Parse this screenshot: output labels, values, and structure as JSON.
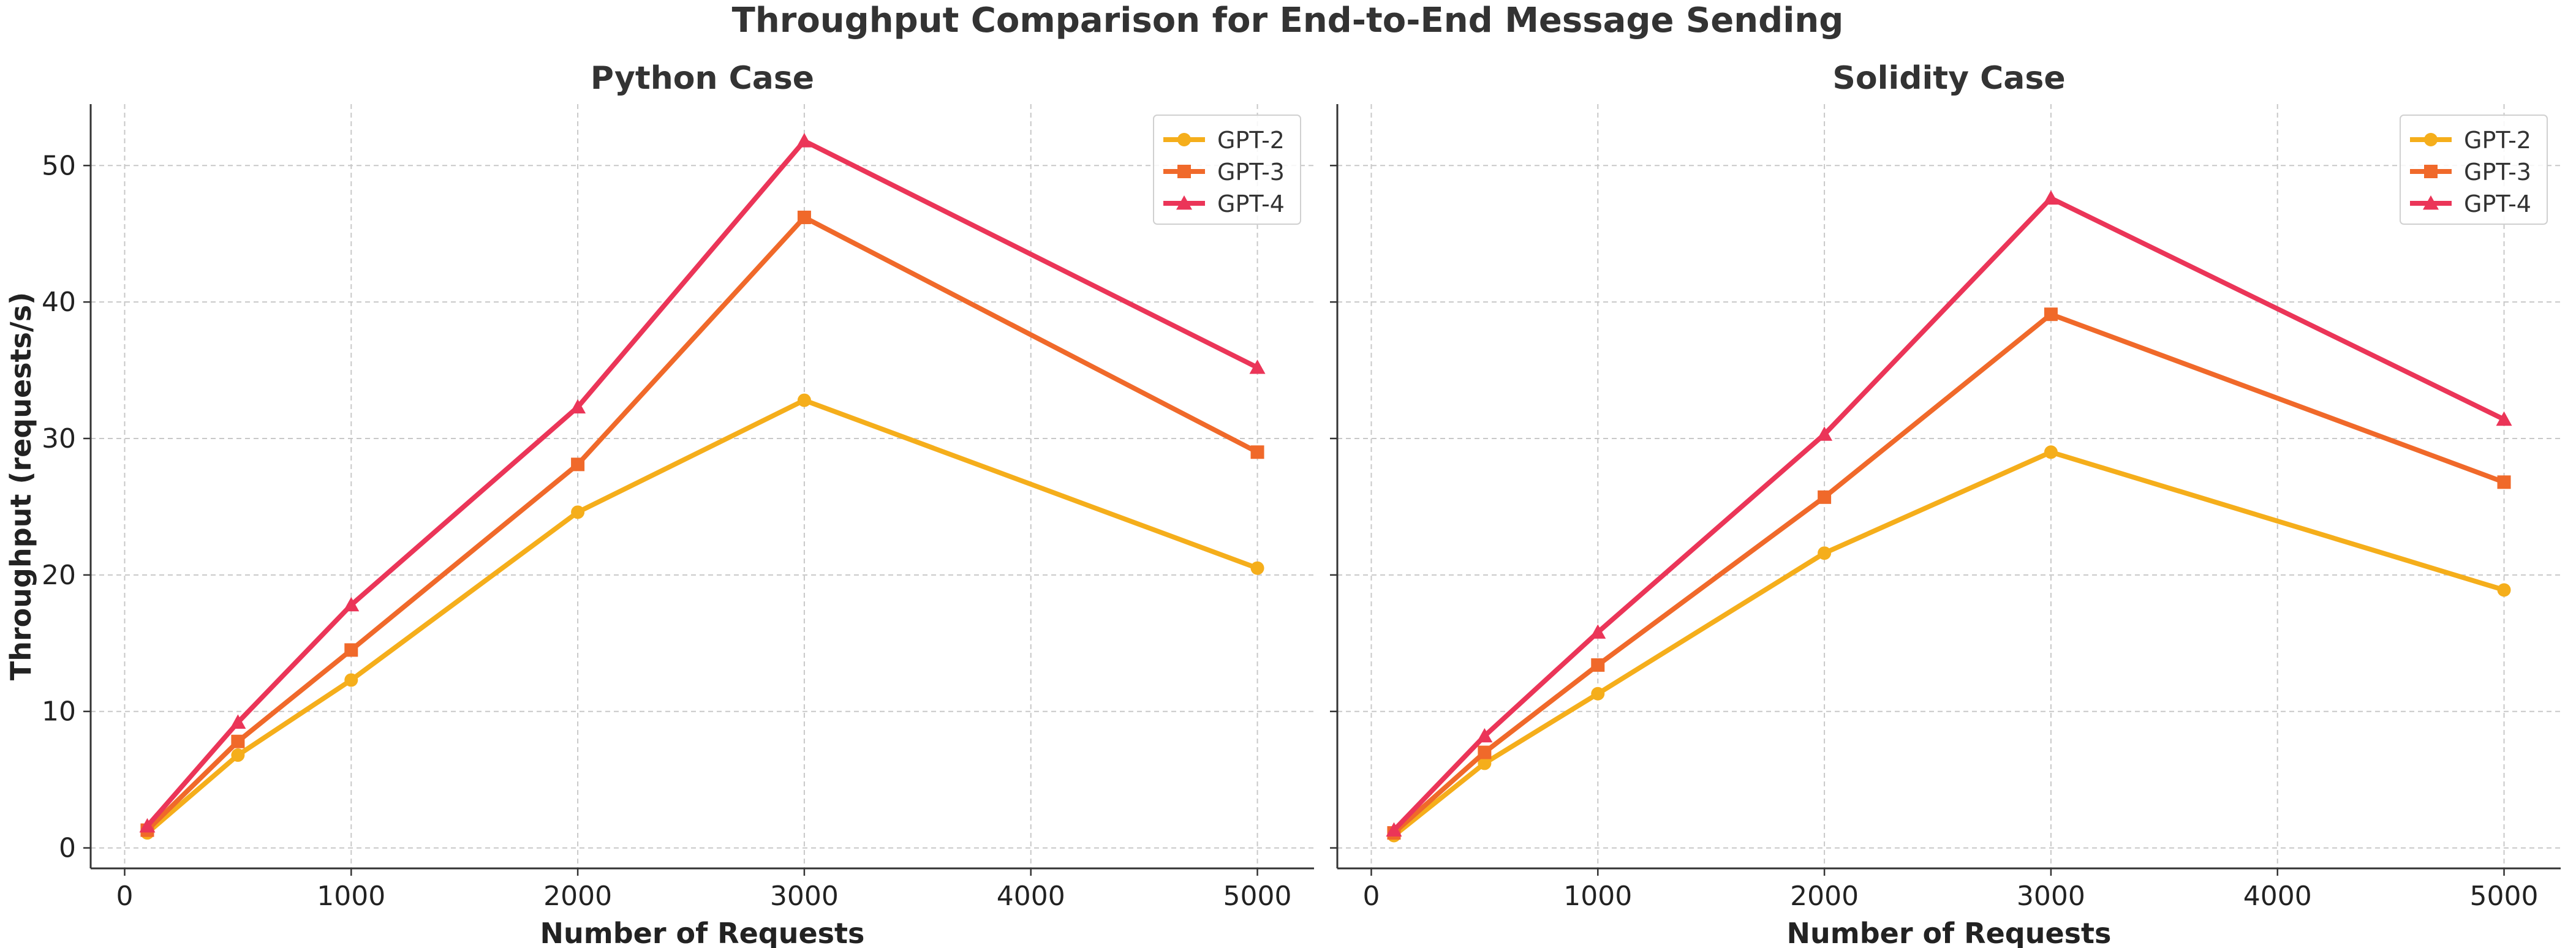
{
  "suptitle": "Throughput Comparison for End-to-End Message Sending",
  "colors": {
    "gpt2": "#F5AE1B",
    "gpt3": "#F0692A",
    "gpt4": "#EB3558",
    "axis": "#333333",
    "grid": "#c8c8c8"
  },
  "chart_data": [
    {
      "type": "line",
      "title": "Python Case",
      "xlabel": "Number of Requests",
      "ylabel": "Throughput (requests/s)",
      "xlim": [
        -150,
        5250
      ],
      "ylim": [
        -1.5,
        54.5
      ],
      "xticks": [
        0,
        1000,
        2000,
        3000,
        4000,
        5000
      ],
      "yticks": [
        0,
        10,
        20,
        30,
        40,
        50
      ],
      "grid": true,
      "legend_position": "top-right",
      "x": [
        100,
        500,
        1000,
        2000,
        3000,
        5000
      ],
      "series": [
        {
          "name": "GPT-2",
          "marker": "circle",
          "color": "#F5AE1B",
          "values": [
            1.1,
            6.8,
            12.3,
            24.6,
            32.8,
            20.5
          ]
        },
        {
          "name": "GPT-3",
          "marker": "square",
          "color": "#F0692A",
          "values": [
            1.3,
            7.8,
            14.5,
            28.1,
            46.2,
            29.0
          ]
        },
        {
          "name": "GPT-4",
          "marker": "triangle",
          "color": "#EB3558",
          "values": [
            1.6,
            9.2,
            17.8,
            32.3,
            51.8,
            35.2
          ]
        }
      ]
    },
    {
      "type": "line",
      "title": "Solidity Case",
      "xlabel": "Number of Requests",
      "ylabel": "",
      "xlim": [
        -150,
        5250
      ],
      "ylim": [
        -1.5,
        54.5
      ],
      "xticks": [
        0,
        1000,
        2000,
        3000,
        4000,
        5000
      ],
      "yticks": [
        0,
        10,
        20,
        30,
        40,
        50
      ],
      "grid": true,
      "legend_position": "top-right",
      "x": [
        100,
        500,
        1000,
        2000,
        3000,
        5000
      ],
      "series": [
        {
          "name": "GPT-2",
          "marker": "circle",
          "color": "#F5AE1B",
          "values": [
            0.9,
            6.2,
            11.3,
            21.6,
            29.0,
            18.9
          ]
        },
        {
          "name": "GPT-3",
          "marker": "square",
          "color": "#F0692A",
          "values": [
            1.1,
            7.0,
            13.4,
            25.7,
            39.1,
            26.8
          ]
        },
        {
          "name": "GPT-4",
          "marker": "triangle",
          "color": "#EB3558",
          "values": [
            1.3,
            8.2,
            15.8,
            30.3,
            47.6,
            31.4
          ]
        }
      ]
    }
  ]
}
